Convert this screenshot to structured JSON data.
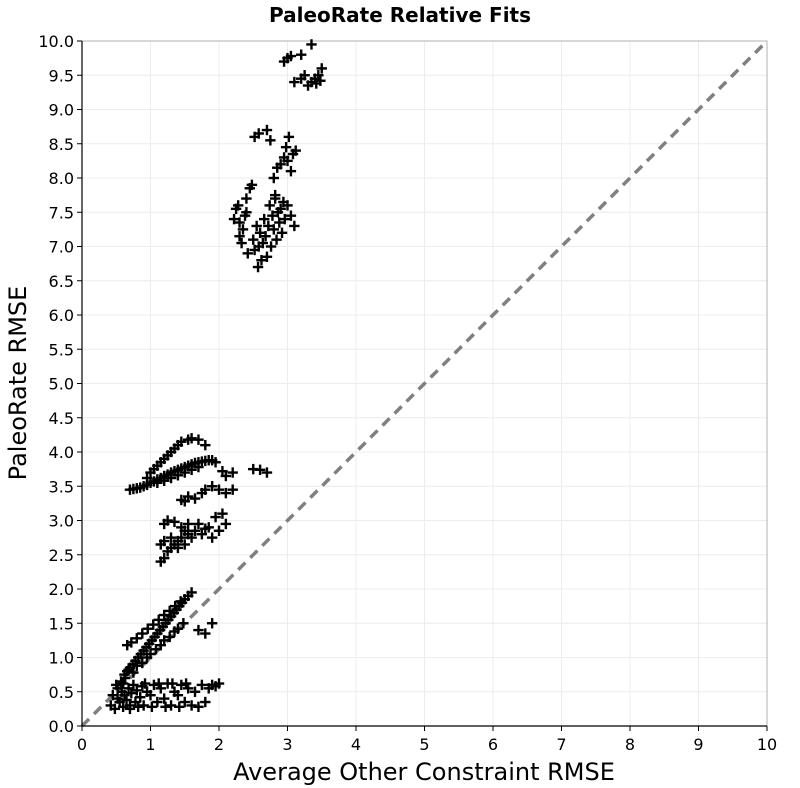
{
  "chart_data": {
    "type": "scatter",
    "title": "PaleoRate Relative Fits",
    "xlabel": "Average Other Constraint RMSE",
    "ylabel": "PaleoRate RMSE",
    "xlim": [
      0,
      10
    ],
    "ylim": [
      0,
      10
    ],
    "x_ticks": [
      "0",
      "1",
      "2",
      "3",
      "4",
      "5",
      "6",
      "7",
      "8",
      "9",
      "10"
    ],
    "y_ticks": [
      "0.0",
      "0.5",
      "1.0",
      "1.5",
      "2.0",
      "2.5",
      "3.0",
      "3.5",
      "4.0",
      "4.5",
      "5.0",
      "5.5",
      "6.0",
      "6.5",
      "7.0",
      "7.5",
      "8.0",
      "8.5",
      "9.0",
      "9.5",
      "10.0"
    ],
    "grid": true,
    "marker": "plus",
    "marker_color": "#000000",
    "reference_line": {
      "style": "dashed",
      "color": "#808080",
      "from": [
        0,
        0
      ],
      "to": [
        10,
        10
      ]
    },
    "series": [
      {
        "points": [
          [
            0.42,
            0.3
          ],
          [
            0.48,
            0.25
          ],
          [
            0.52,
            0.4
          ],
          [
            0.55,
            0.35
          ],
          [
            0.58,
            0.5
          ],
          [
            0.6,
            0.28
          ],
          [
            0.62,
            0.45
          ],
          [
            0.65,
            0.38
          ],
          [
            0.68,
            0.55
          ],
          [
            0.7,
            0.3
          ],
          [
            0.72,
            0.48
          ],
          [
            0.75,
            0.6
          ],
          [
            0.78,
            0.35
          ],
          [
            0.8,
            0.52
          ],
          [
            0.85,
            0.42
          ],
          [
            0.88,
            0.58
          ],
          [
            0.9,
            0.3
          ],
          [
            0.95,
            0.5
          ],
          [
            1.0,
            0.45
          ],
          [
            1.05,
            0.6
          ],
          [
            1.1,
            0.35
          ],
          [
            1.15,
            0.55
          ],
          [
            1.2,
            0.4
          ],
          [
            1.25,
            0.62
          ],
          [
            1.3,
            0.3
          ],
          [
            1.35,
            0.5
          ],
          [
            1.4,
            0.45
          ],
          [
            1.45,
            0.6
          ],
          [
            1.5,
            0.35
          ],
          [
            1.55,
            0.55
          ],
          [
            1.6,
            0.3
          ],
          [
            1.65,
            0.5
          ],
          [
            1.7,
            0.28
          ],
          [
            1.75,
            0.6
          ],
          [
            1.8,
            0.35
          ],
          [
            1.85,
            0.55
          ],
          [
            1.9,
            0.6
          ],
          [
            1.95,
            0.58
          ],
          [
            2.0,
            0.62
          ],
          [
            0.5,
            0.6
          ],
          [
            0.6,
            0.62
          ],
          [
            0.7,
            0.25
          ],
          [
            0.82,
            0.28
          ],
          [
            0.92,
            0.62
          ],
          [
            1.02,
            0.28
          ],
          [
            1.12,
            0.62
          ],
          [
            1.22,
            0.28
          ],
          [
            1.32,
            0.62
          ],
          [
            1.42,
            0.28
          ],
          [
            1.52,
            0.62
          ],
          [
            0.45,
            0.45
          ],
          [
            0.52,
            0.55
          ],
          [
            0.57,
            0.65
          ],
          [
            0.63,
            0.7
          ],
          [
            0.66,
            0.8
          ],
          [
            0.7,
            0.85
          ],
          [
            0.74,
            0.9
          ],
          [
            0.78,
            0.95
          ],
          [
            0.82,
            1.0
          ],
          [
            0.86,
            1.05
          ],
          [
            0.9,
            1.1
          ],
          [
            0.94,
            1.15
          ],
          [
            0.98,
            1.2
          ],
          [
            1.02,
            1.25
          ],
          [
            1.06,
            1.3
          ],
          [
            1.1,
            1.35
          ],
          [
            1.14,
            1.4
          ],
          [
            1.18,
            1.45
          ],
          [
            1.22,
            1.5
          ],
          [
            1.26,
            1.55
          ],
          [
            1.3,
            1.6
          ],
          [
            1.34,
            1.65
          ],
          [
            1.38,
            1.7
          ],
          [
            1.42,
            1.75
          ],
          [
            1.46,
            1.8
          ],
          [
            1.5,
            1.85
          ],
          [
            1.55,
            1.9
          ],
          [
            1.6,
            1.95
          ],
          [
            1.7,
            1.4
          ],
          [
            1.8,
            1.35
          ],
          [
            1.9,
            1.5
          ],
          [
            0.62,
            0.75
          ],
          [
            0.68,
            0.82
          ],
          [
            0.75,
            0.78
          ],
          [
            0.8,
            0.88
          ],
          [
            0.88,
            0.92
          ],
          [
            0.95,
            1.0
          ],
          [
            1.0,
            1.05
          ],
          [
            1.08,
            1.12
          ],
          [
            1.15,
            1.18
          ],
          [
            1.2,
            1.25
          ],
          [
            1.28,
            1.3
          ],
          [
            1.35,
            1.38
          ],
          [
            1.4,
            1.42
          ],
          [
            1.48,
            1.5
          ],
          [
            0.66,
            1.18
          ],
          [
            0.72,
            1.22
          ],
          [
            0.8,
            1.28
          ],
          [
            0.88,
            1.35
          ],
          [
            0.96,
            1.42
          ],
          [
            1.04,
            1.48
          ],
          [
            1.12,
            1.55
          ],
          [
            1.2,
            1.62
          ],
          [
            1.28,
            1.68
          ],
          [
            1.36,
            1.75
          ],
          [
            1.44,
            1.82
          ],
          [
            0.7,
            3.45
          ],
          [
            0.75,
            3.46
          ],
          [
            0.8,
            3.47
          ],
          [
            0.85,
            3.48
          ],
          [
            0.9,
            3.5
          ],
          [
            0.95,
            3.52
          ],
          [
            1.0,
            3.55
          ],
          [
            1.05,
            3.57
          ],
          [
            1.1,
            3.6
          ],
          [
            1.15,
            3.62
          ],
          [
            1.2,
            3.65
          ],
          [
            1.25,
            3.67
          ],
          [
            1.3,
            3.7
          ],
          [
            1.35,
            3.72
          ],
          [
            1.4,
            3.74
          ],
          [
            1.45,
            3.76
          ],
          [
            1.5,
            3.78
          ],
          [
            1.55,
            3.8
          ],
          [
            1.6,
            3.82
          ],
          [
            1.65,
            3.84
          ],
          [
            1.7,
            3.85
          ],
          [
            1.75,
            3.86
          ],
          [
            1.8,
            3.87
          ],
          [
            1.85,
            3.88
          ],
          [
            1.9,
            3.88
          ],
          [
            1.95,
            3.85
          ],
          [
            0.95,
            3.62
          ],
          [
            1.0,
            3.7
          ],
          [
            1.05,
            3.75
          ],
          [
            1.1,
            3.8
          ],
          [
            1.15,
            3.85
          ],
          [
            1.2,
            3.9
          ],
          [
            1.25,
            3.95
          ],
          [
            1.3,
            4.0
          ],
          [
            1.35,
            4.05
          ],
          [
            1.4,
            4.1
          ],
          [
            1.45,
            4.15
          ],
          [
            1.55,
            4.18
          ],
          [
            1.6,
            4.2
          ],
          [
            1.7,
            4.18
          ],
          [
            1.8,
            4.1
          ],
          [
            1.1,
            3.55
          ],
          [
            1.2,
            3.58
          ],
          [
            1.3,
            3.62
          ],
          [
            1.4,
            3.66
          ],
          [
            1.5,
            3.7
          ],
          [
            1.6,
            3.74
          ],
          [
            1.7,
            3.78
          ],
          [
            2.05,
            3.72
          ],
          [
            2.1,
            3.65
          ],
          [
            2.2,
            3.7
          ],
          [
            2.5,
            3.75
          ],
          [
            2.6,
            3.74
          ],
          [
            2.7,
            3.7
          ],
          [
            1.45,
            3.3
          ],
          [
            1.5,
            3.28
          ],
          [
            1.55,
            3.35
          ],
          [
            1.65,
            3.32
          ],
          [
            1.75,
            3.4
          ],
          [
            1.8,
            3.45
          ],
          [
            1.9,
            3.5
          ],
          [
            2.0,
            3.45
          ],
          [
            2.1,
            3.4
          ],
          [
            2.2,
            3.45
          ],
          [
            1.2,
            2.95
          ],
          [
            1.25,
            3.0
          ],
          [
            1.35,
            2.98
          ],
          [
            1.45,
            2.9
          ],
          [
            1.55,
            2.95
          ],
          [
            1.65,
            2.85
          ],
          [
            1.75,
            2.8
          ],
          [
            1.85,
            2.9
          ],
          [
            1.95,
            3.05
          ],
          [
            2.05,
            3.1
          ],
          [
            1.15,
            2.4
          ],
          [
            1.2,
            2.45
          ],
          [
            1.25,
            2.55
          ],
          [
            1.3,
            2.6
          ],
          [
            1.35,
            2.65
          ],
          [
            1.4,
            2.7
          ],
          [
            1.45,
            2.75
          ],
          [
            1.5,
            2.65
          ],
          [
            1.55,
            2.8
          ],
          [
            1.6,
            2.75
          ],
          [
            1.15,
            2.65
          ],
          [
            1.2,
            2.7
          ],
          [
            1.3,
            2.75
          ],
          [
            1.4,
            2.6
          ],
          [
            1.5,
            2.85
          ],
          [
            1.7,
            2.95
          ],
          [
            1.8,
            2.88
          ],
          [
            1.9,
            2.75
          ],
          [
            2.0,
            2.85
          ],
          [
            2.1,
            2.95
          ],
          [
            2.22,
            7.4
          ],
          [
            2.25,
            7.55
          ],
          [
            2.28,
            7.6
          ],
          [
            2.3,
            7.15
          ],
          [
            2.33,
            7.05
          ],
          [
            2.35,
            7.25
          ],
          [
            2.38,
            7.45
          ],
          [
            2.4,
            7.7
          ],
          [
            2.42,
            6.9
          ],
          [
            2.45,
            7.85
          ],
          [
            2.48,
            7.9
          ],
          [
            2.5,
            7.1
          ],
          [
            2.52,
            6.95
          ],
          [
            2.55,
            7.3
          ],
          [
            2.57,
            6.7
          ],
          [
            2.58,
            7.0
          ],
          [
            2.6,
            7.2
          ],
          [
            2.62,
            6.8
          ],
          [
            2.64,
            7.05
          ],
          [
            2.66,
            7.4
          ],
          [
            2.68,
            7.15
          ],
          [
            2.7,
            6.85
          ],
          [
            2.72,
            7.3
          ],
          [
            2.74,
            7.6
          ],
          [
            2.76,
            7.0
          ],
          [
            2.78,
            7.45
          ],
          [
            2.8,
            7.25
          ],
          [
            2.82,
            7.7
          ],
          [
            2.84,
            7.1
          ],
          [
            2.86,
            7.5
          ],
          [
            2.88,
            7.35
          ],
          [
            2.9,
            7.55
          ],
          [
            2.92,
            7.2
          ],
          [
            2.94,
            7.65
          ],
          [
            2.96,
            7.4
          ],
          [
            3.0,
            7.6
          ],
          [
            3.05,
            7.45
          ],
          [
            3.1,
            7.3
          ],
          [
            2.3,
            7.35
          ],
          [
            2.4,
            7.5
          ],
          [
            2.52,
            8.6
          ],
          [
            2.58,
            8.65
          ],
          [
            2.7,
            8.7
          ],
          [
            2.75,
            8.55
          ],
          [
            2.8,
            8.0
          ],
          [
            2.85,
            8.15
          ],
          [
            2.9,
            8.2
          ],
          [
            2.95,
            8.3
          ],
          [
            3.0,
            8.25
          ],
          [
            3.05,
            8.1
          ],
          [
            3.08,
            8.35
          ],
          [
            3.12,
            8.4
          ],
          [
            2.82,
            7.75
          ],
          [
            2.98,
            8.45
          ],
          [
            3.02,
            8.6
          ],
          [
            2.95,
            9.7
          ],
          [
            3.0,
            9.75
          ],
          [
            3.05,
            9.78
          ],
          [
            3.2,
            9.8
          ],
          [
            3.35,
            9.95
          ],
          [
            3.5,
            9.6
          ],
          [
            3.3,
            9.35
          ],
          [
            3.35,
            9.4
          ],
          [
            3.4,
            9.45
          ],
          [
            3.42,
            9.38
          ],
          [
            3.45,
            9.5
          ],
          [
            3.48,
            9.42
          ],
          [
            3.1,
            9.4
          ],
          [
            3.2,
            9.45
          ],
          [
            3.25,
            9.5
          ]
        ]
      }
    ]
  }
}
